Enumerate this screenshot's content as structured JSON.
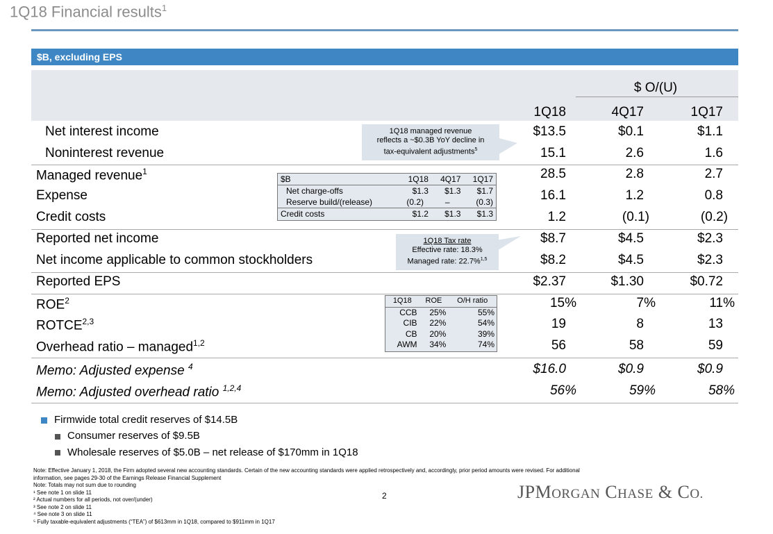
{
  "title": {
    "text": "1Q18 Financial results",
    "sup": "1"
  },
  "band": "$B, excluding EPS",
  "header": {
    "group": "$ O/(U)",
    "cols": [
      "1Q18",
      "4Q17",
      "1Q17"
    ]
  },
  "rows": [
    {
      "label": "Net interest income",
      "sup": "",
      "values": [
        "$13.5",
        "$0.1",
        "$1.1"
      ]
    },
    {
      "label": "Noninterest revenue",
      "sup": "",
      "values": [
        "15.1",
        "2.6",
        "1.6"
      ]
    },
    {
      "label": "Managed revenue",
      "sup": "1",
      "values": [
        "28.5",
        "2.8",
        "2.7"
      ]
    },
    {
      "label": "Expense",
      "sup": "",
      "values": [
        "16.1",
        "1.2",
        "0.8"
      ]
    },
    {
      "label": "Credit costs",
      "sup": "",
      "values": [
        "1.2",
        "(0.1)",
        "(0.2)"
      ]
    },
    {
      "label": "Reported net income",
      "sup": "",
      "values": [
        "$8.7",
        "$4.5",
        "$2.3"
      ]
    },
    {
      "label": "Net income applicable to common stockholders",
      "sup": "",
      "values": [
        "$8.2",
        "$4.5",
        "$2.3"
      ]
    },
    {
      "label": "Reported EPS",
      "sup": "",
      "values": [
        "$2.37",
        "$1.30",
        "$0.72"
      ]
    },
    {
      "label": "ROE",
      "sup": "2",
      "values": [
        "15%",
        "7%",
        "11%"
      ]
    },
    {
      "label": "ROTCE",
      "sup": "2,3",
      "values": [
        "19",
        "8",
        "13"
      ]
    },
    {
      "label": "Overhead ratio – managed",
      "sup": "1,2",
      "values": [
        "56",
        "58",
        "59"
      ]
    },
    {
      "label": "Memo: Adjusted expense ",
      "sup": "4",
      "values": [
        "$16.0",
        "$0.9",
        "$0.9"
      ]
    },
    {
      "label": "Memo: Adjusted overhead ratio ",
      "sup": "1,2,4",
      "values": [
        "56%",
        "59%",
        "58%"
      ]
    }
  ],
  "callout_revenue": {
    "line1": "1Q18 managed revenue",
    "line2": "reflects a ~$0.3B YoY decline in",
    "line3": "tax-equivalent adjustments",
    "sup": "5"
  },
  "callout_tax": {
    "title": "1Q18 Tax rate",
    "line1": "Effective rate: 18.3%",
    "line2": "Managed rate: 22.7%",
    "sup": "1,5"
  },
  "credit_table": {
    "header": [
      "$B",
      "1Q18",
      "4Q17",
      "1Q17"
    ],
    "rows": [
      [
        "Net charge-offs",
        "$1.3",
        "$1.3",
        "$1.7"
      ],
      [
        "Reserve build/(release)",
        "(0.2)",
        "–",
        "(0.3)"
      ]
    ],
    "total": [
      "Credit costs",
      "$1.2",
      "$1.3",
      "$1.3"
    ]
  },
  "ratio_table": {
    "header": [
      "1Q18",
      "ROE",
      "O/H ratio"
    ],
    "rows": [
      [
        "CCB",
        "25%",
        "55%"
      ],
      [
        "CIB",
        "22%",
        "54%"
      ],
      [
        "CB",
        "20%",
        "39%"
      ],
      [
        "AWM",
        "34%",
        "74%"
      ]
    ]
  },
  "bullets": [
    {
      "level": 1,
      "text": "Firmwide total credit reserves of $14.5B"
    },
    {
      "level": 2,
      "text": "Consumer reserves of $9.5B"
    },
    {
      "level": 2,
      "text": "Wholesale reserves of $5.0B – net release of $170mm in 1Q18"
    }
  ],
  "notes": [
    "Note: Effective January 1, 2018, the Firm adopted several new accounting standards. Certain of the new accounting standards were applied retrospectively and, accordingly, prior period amounts were revised. For additional",
    "information, see pages 29-30 of the Earnings Release Financial Supplement",
    "Note: Totals may not sum due to rounding",
    "¹ See note 1 on slide 11",
    "² Actual numbers for all periods, not over/(under)",
    "³ See note 2 on slide 11",
    "⁴ See note 3 on slide 11",
    "⁵ Fully taxable-equivalent adjustments (“TEA”) of $613mm in 1Q18, compared to $911mm in 1Q17"
  ],
  "page_number": "2",
  "logo": {
    "p1": "JPM",
    "p2": "ORGAN",
    "p3": " C",
    "p4": "HASE",
    "p5": " & C",
    "p6": "O."
  },
  "colors": {
    "band": "#3f87c4",
    "title": "#8c8c8c",
    "bullet": "#3f87c4",
    "subbullet": "#555555"
  }
}
